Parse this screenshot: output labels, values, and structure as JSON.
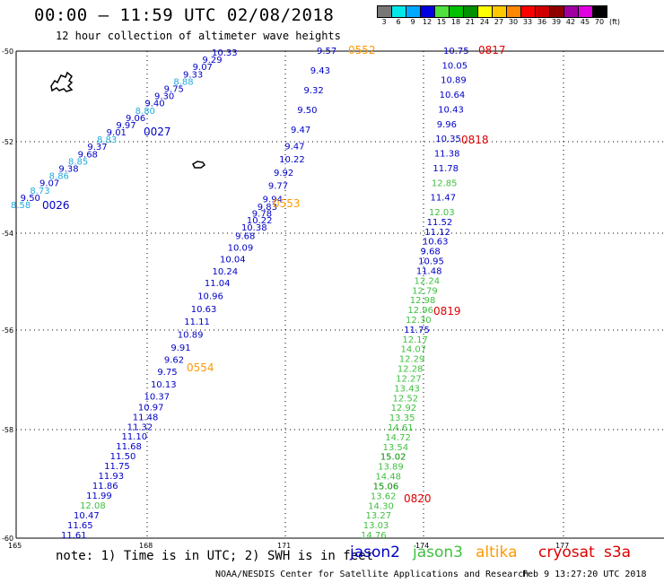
{
  "header": {
    "title": "00:00 – 11:59 UTC 02/08/2018",
    "subtitle": "12 hour collection of altimeter wave heights"
  },
  "colorbar": {
    "unit": "(ft)",
    "stops": [
      {
        "label": "3",
        "color": "#777777"
      },
      {
        "label": "6",
        "color": "#00e8e8"
      },
      {
        "label": "9",
        "color": "#00a8ff"
      },
      {
        "label": "12",
        "color": "#0000e0"
      },
      {
        "label": "15",
        "color": "#50e040"
      },
      {
        "label": "18",
        "color": "#00c000"
      },
      {
        "label": "21",
        "color": "#009000"
      },
      {
        "label": "24",
        "color": "#ffff00"
      },
      {
        "label": "27",
        "color": "#ffc800"
      },
      {
        "label": "30",
        "color": "#ff8800"
      },
      {
        "label": "33",
        "color": "#ff0000"
      },
      {
        "label": "36",
        "color": "#d00000"
      },
      {
        "label": "39",
        "color": "#900000"
      },
      {
        "label": "42",
        "color": "#a000a0"
      },
      {
        "label": "45",
        "color": "#e000e0"
      },
      {
        "label": "70",
        "color": "#000000"
      }
    ]
  },
  "axes": {
    "lat_ticks": [
      "-50",
      "-52",
      "-54",
      "-56",
      "-58",
      "-60"
    ],
    "lon_ticks": [
      "165",
      "168",
      "171",
      "174",
      "177"
    ]
  },
  "colors": {
    "jason2": "#0000c8",
    "jason3": "#40c040",
    "altika": "#ff9900",
    "cryosat": "#dd0000",
    "sentinel": "#dd0000",
    "light_blue": "#22aadd",
    "dark_green": "#009000"
  },
  "tracks": {
    "pass_a": [
      {
        "t": "8.58",
        "c": "light_blue"
      },
      {
        "t": "9.50",
        "c": "jason2"
      },
      {
        "t": "8.73",
        "c": "light_blue"
      },
      {
        "t": "9.07",
        "c": "jason2"
      },
      {
        "t": "8.86",
        "c": "light_blue"
      },
      {
        "t": "9.38",
        "c": "jason2"
      },
      {
        "t": "8.85",
        "c": "light_blue"
      },
      {
        "t": "9.68",
        "c": "jason2"
      },
      {
        "t": "9.37",
        "c": "jason2"
      },
      {
        "t": "8.83",
        "c": "light_blue"
      },
      {
        "t": "9.01",
        "c": "jason2"
      },
      {
        "t": "9.97",
        "c": "jason2"
      },
      {
        "t": "9.06",
        "c": "jason2"
      },
      {
        "t": "8.80",
        "c": "light_blue"
      },
      {
        "t": "9.40",
        "c": "jason2"
      },
      {
        "t": "9.30",
        "c": "jason2"
      },
      {
        "t": "9.75",
        "c": "jason2"
      },
      {
        "t": "8.88",
        "c": "light_blue"
      },
      {
        "t": "9.33",
        "c": "jason2"
      },
      {
        "t": "9.07",
        "c": "jason2"
      },
      {
        "t": "9.29",
        "c": "jason2"
      },
      {
        "t": "10.33",
        "c": "jason2"
      }
    ],
    "pass_b": [
      {
        "t": "9.57",
        "c": "jason2"
      },
      {
        "t": "9.43",
        "c": "jason2"
      },
      {
        "t": "9.32",
        "c": "jason2"
      },
      {
        "t": "9.50",
        "c": "jason2"
      },
      {
        "t": "9.47",
        "c": "jason2"
      },
      {
        "t": "9.47",
        "c": "jason2"
      },
      {
        "t": "10.22",
        "c": "jason2"
      },
      {
        "t": "9.92",
        "c": "jason2"
      },
      {
        "t": "9.77",
        "c": "jason2"
      },
      {
        "t": "9.94",
        "c": "jason2"
      },
      {
        "t": "9.83",
        "c": "jason2"
      },
      {
        "t": "9.78",
        "c": "jason2"
      },
      {
        "t": "10.22",
        "c": "jason2"
      },
      {
        "t": "10.38",
        "c": "jason2"
      },
      {
        "t": "9.68",
        "c": "jason2"
      },
      {
        "t": "10.09",
        "c": "jason2"
      },
      {
        "t": "10.04",
        "c": "jason2"
      },
      {
        "t": "10.24",
        "c": "jason2"
      },
      {
        "t": "11.04",
        "c": "jason2"
      },
      {
        "t": "10.96",
        "c": "jason2"
      },
      {
        "t": "10.63",
        "c": "jason2"
      },
      {
        "t": "11.11",
        "c": "jason2"
      },
      {
        "t": "10.89",
        "c": "jason2"
      },
      {
        "t": "9.91",
        "c": "jason2"
      },
      {
        "t": "9.62",
        "c": "jason2"
      },
      {
        "t": "9.75",
        "c": "jason2"
      },
      {
        "t": "10.13",
        "c": "jason2"
      },
      {
        "t": "10.37",
        "c": "jason2"
      },
      {
        "t": "10.97",
        "c": "jason2"
      },
      {
        "t": "11.48",
        "c": "jason2"
      },
      {
        "t": "11.32",
        "c": "jason2"
      },
      {
        "t": "11.10",
        "c": "jason2"
      },
      {
        "t": "11.68",
        "c": "jason2"
      },
      {
        "t": "11.50",
        "c": "jason2"
      },
      {
        "t": "11.75",
        "c": "jason2"
      },
      {
        "t": "11.93",
        "c": "jason2"
      },
      {
        "t": "11.86",
        "c": "jason2"
      },
      {
        "t": "11.99",
        "c": "jason2"
      },
      {
        "t": "12.08",
        "c": "jason3"
      },
      {
        "t": "10.47",
        "c": "jason2"
      },
      {
        "t": "11.65",
        "c": "jason2"
      },
      {
        "t": "11.61",
        "c": "jason2"
      }
    ],
    "pass_c": [
      {
        "t": "10.75",
        "c": "jason2"
      },
      {
        "t": "10.05",
        "c": "jason2"
      },
      {
        "t": "10.89",
        "c": "jason2"
      },
      {
        "t": "10.64",
        "c": "jason2"
      },
      {
        "t": "10.43",
        "c": "jason2"
      },
      {
        "t": "9.96",
        "c": "jason2"
      },
      {
        "t": "10.35",
        "c": "jason2"
      },
      {
        "t": "11.38",
        "c": "jason2"
      },
      {
        "t": "11.78",
        "c": "jason2"
      },
      {
        "t": "12.85",
        "c": "jason3"
      },
      {
        "t": "11.47",
        "c": "jason2"
      },
      {
        "t": "12.03",
        "c": "jason3"
      },
      {
        "t": "11.52",
        "c": "jason2"
      },
      {
        "t": "11.12",
        "c": "jason2"
      },
      {
        "t": "10.63",
        "c": "jason2"
      },
      {
        "t": "9.68",
        "c": "jason2"
      },
      {
        "t": "10.95",
        "c": "jason2"
      },
      {
        "t": "11.48",
        "c": "jason2"
      },
      {
        "t": "12.24",
        "c": "jason3"
      },
      {
        "t": "12.79",
        "c": "jason3"
      },
      {
        "t": "12.98",
        "c": "jason3"
      },
      {
        "t": "12.96",
        "c": "jason3"
      },
      {
        "t": "12.30",
        "c": "jason3"
      },
      {
        "t": "11.75",
        "c": "jason2"
      },
      {
        "t": "12.17",
        "c": "jason3"
      },
      {
        "t": "14.07",
        "c": "jason3"
      },
      {
        "t": "12.29",
        "c": "jason3"
      },
      {
        "t": "12.28",
        "c": "jason3"
      },
      {
        "t": "12.27",
        "c": "jason3"
      },
      {
        "t": "13.43",
        "c": "jason3"
      },
      {
        "t": "12.52",
        "c": "jason3"
      },
      {
        "t": "12.92",
        "c": "jason3"
      },
      {
        "t": "13.35",
        "c": "jason3"
      },
      {
        "t": "14.61",
        "c": "jason3"
      },
      {
        "t": "14.72",
        "c": "jason3"
      },
      {
        "t": "13.54",
        "c": "jason3"
      },
      {
        "t": "15.02",
        "c": "dark_green"
      },
      {
        "t": "13.89",
        "c": "jason3"
      },
      {
        "t": "14.48",
        "c": "jason3"
      },
      {
        "t": "15.06",
        "c": "dark_green"
      },
      {
        "t": "13.62",
        "c": "jason3"
      },
      {
        "t": "14.30",
        "c": "jason3"
      },
      {
        "t": "13.27",
        "c": "jason3"
      },
      {
        "t": "13.03",
        "c": "jason3"
      },
      {
        "t": "14.76",
        "c": "jason3"
      }
    ]
  },
  "time_labels": [
    {
      "t": "0026",
      "c": "jason2"
    },
    {
      "t": "0027",
      "c": "jason2"
    },
    {
      "t": "0552",
      "c": "altika"
    },
    {
      "t": "0553",
      "c": "altika"
    },
    {
      "t": "0554",
      "c": "altika"
    },
    {
      "t": "0817",
      "c": "cryosat"
    },
    {
      "t": "0818",
      "c": "cryosat"
    },
    {
      "t": "0819",
      "c": "cryosat"
    },
    {
      "t": "0820",
      "c": "cryosat"
    }
  ],
  "footer": {
    "note": "note: 1) Time is in UTC; 2) SWH is in feet",
    "legend": [
      {
        "t": "jason2",
        "c": "jason2"
      },
      {
        "t": "jason3",
        "c": "jason3"
      },
      {
        "t": "altika",
        "c": "altika"
      },
      {
        "t": "cryosat",
        "c": "cryosat"
      },
      {
        "t": "s3a",
        "c": "sentinel"
      }
    ],
    "credit": "NOAA/NESDIS Center for Satellite Applications and Research",
    "generated": "Feb  9 13:27:20 UTC 2018"
  }
}
